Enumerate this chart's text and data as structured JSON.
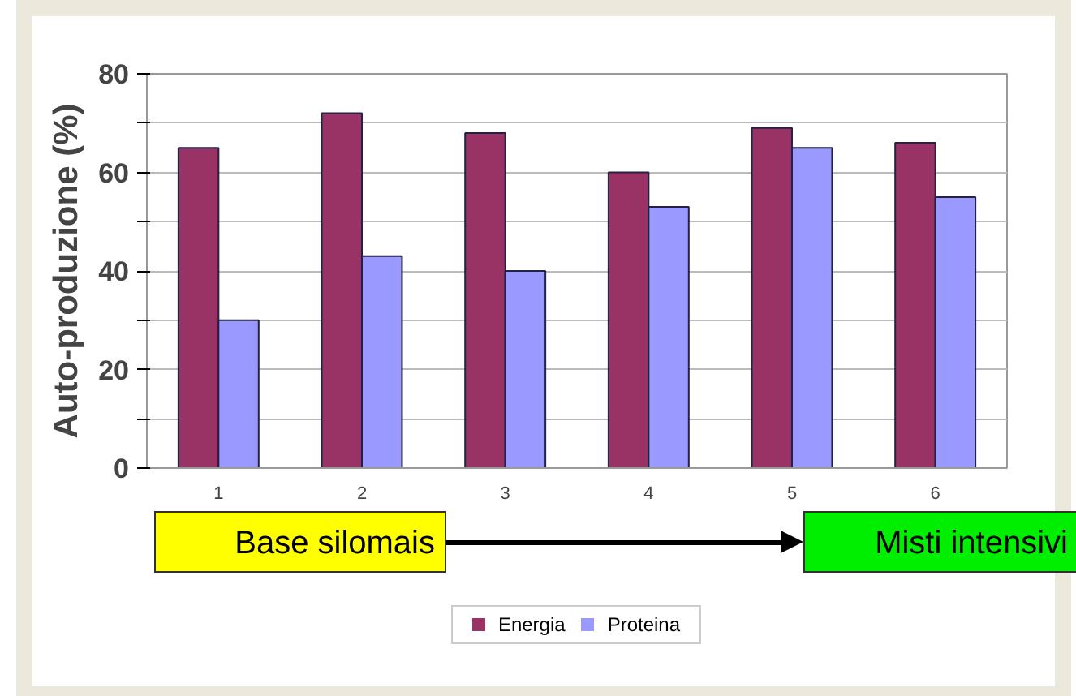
{
  "chart_data": {
    "type": "bar",
    "ylabel": "Auto-produzione (%)",
    "categories": [
      "1",
      "2",
      "3",
      "4",
      "5",
      "6"
    ],
    "series": [
      {
        "name": "Energia",
        "color": "#993366",
        "values": [
          65,
          72,
          68,
          60,
          69,
          66
        ]
      },
      {
        "name": "Proteina",
        "color": "#9999ff",
        "values": [
          30,
          43,
          40,
          53,
          65,
          55
        ]
      }
    ],
    "ylim": [
      0,
      80
    ],
    "yticks": [
      0,
      {
        "value": 10,
        "label": null
      },
      20,
      {
        "value": 30,
        "label": null
      },
      40,
      {
        "value": 50,
        "label": null
      },
      60,
      {
        "value": 70,
        "label": null
      },
      80
    ],
    "grid": "y",
    "legend": "bottom",
    "annotations": [
      "Base silomais",
      "Misti intensivi"
    ]
  }
}
